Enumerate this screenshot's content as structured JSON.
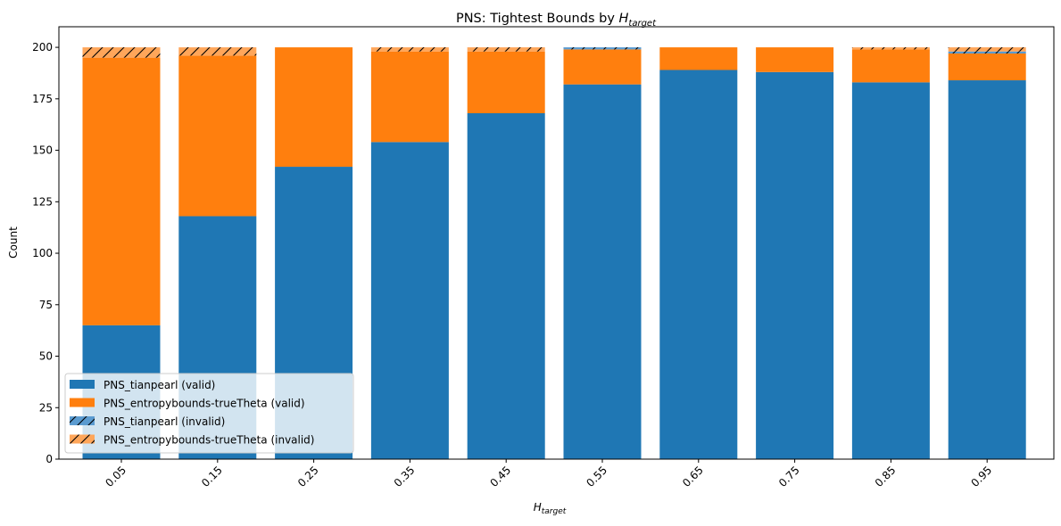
{
  "chart_data": {
    "type": "bar",
    "stacked": true,
    "title": "PNS: Tightest Bounds by ",
    "title_math": "H",
    "title_math_sub": "target",
    "xlabel": "H",
    "xlabel_sub": "target",
    "ylabel": "Count",
    "categories": [
      "0.05",
      "0.15",
      "0.25",
      "0.35",
      "0.45",
      "0.55",
      "0.65",
      "0.75",
      "0.85",
      "0.95"
    ],
    "ylim": [
      0,
      210
    ],
    "yticks": [
      0,
      25,
      50,
      75,
      100,
      125,
      150,
      175,
      200
    ],
    "series": [
      {
        "name": "PNS_tianpearl (valid)",
        "color": "#1f77b4",
        "hatch": false,
        "values": [
          65,
          118,
          142,
          154,
          168,
          182,
          189,
          188,
          183,
          184
        ]
      },
      {
        "name": "PNS_entropybounds-trueTheta (valid)",
        "color": "#ff7f0e",
        "hatch": false,
        "values": [
          130,
          78,
          58,
          44,
          30,
          17,
          11,
          12,
          16,
          13
        ]
      },
      {
        "name": "PNS_tianpearl (invalid)",
        "color": "#5b9bd0",
        "hatch": true,
        "values": [
          0,
          0,
          0,
          0,
          0,
          1,
          0,
          0,
          0,
          1
        ]
      },
      {
        "name": "PNS_entropybounds-trueTheta (invalid)",
        "color": "#ffa65a",
        "hatch": true,
        "values": [
          5,
          4,
          0,
          2,
          2,
          0,
          0,
          0,
          1,
          2
        ]
      }
    ],
    "legend_position": "lower-left"
  }
}
